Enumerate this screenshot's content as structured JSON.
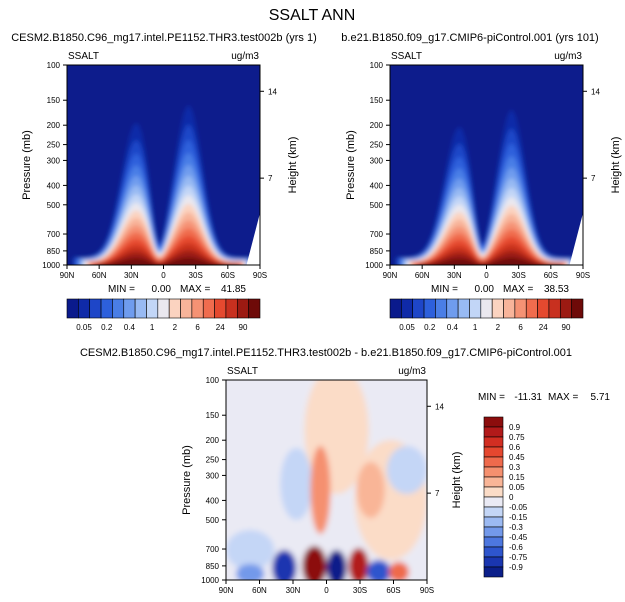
{
  "figure_title": "SSALT ANN",
  "chart_data": [
    {
      "type": "heatmap",
      "title": "CESM2.B1850.C96_mg17.intel.PE1152.THR3.test002b (yrs 1)",
      "left_label": "SSALT",
      "units": "ug/m3",
      "xlabel": "",
      "ylabel": "Pressure (mb)",
      "y2label": "Height (km)",
      "x_ticks": [
        "90N",
        "60N",
        "30N",
        "0",
        "30S",
        "60S",
        "90S"
      ],
      "y_ticks": [
        100,
        150,
        200,
        250,
        300,
        400,
        500,
        700,
        850,
        1000
      ],
      "y_scale": "log",
      "ylim": [
        1000,
        100
      ],
      "y2_ticks": [
        14,
        7
      ],
      "stats": {
        "min_label": "MIN =",
        "min": "0.00",
        "max_label": "MAX =",
        "max": "41.85"
      },
      "color_levels": [
        "0.05",
        "0.2",
        "0.4",
        "1",
        "2",
        "6",
        "24",
        "90"
      ],
      "palette": [
        "#0a1a8c",
        "#0f2aa8",
        "#1e46c8",
        "#2d60dc",
        "#4a7ee6",
        "#6f9cee",
        "#98baf3",
        "#c2d6f7",
        "#eae8ef",
        "#fbd3c0",
        "#f8b49a",
        "#f59274",
        "#f06c4e",
        "#e5492f",
        "#c8301f",
        "#9c1a12",
        "#6e0a08"
      ]
    },
    {
      "type": "heatmap",
      "title": "b.e21.B1850.f09_g17.CMIP6-piControl.001 (yrs 101)",
      "left_label": "SSALT",
      "units": "ug/m3",
      "xlabel": "",
      "ylabel": "Pressure (mb)",
      "y2label": "Height (km)",
      "x_ticks": [
        "90N",
        "60N",
        "30N",
        "0",
        "30S",
        "60S",
        "90S"
      ],
      "y_ticks": [
        100,
        150,
        200,
        250,
        300,
        400,
        500,
        700,
        850,
        1000
      ],
      "y_scale": "log",
      "ylim": [
        1000,
        100
      ],
      "y2_ticks": [
        14,
        7
      ],
      "stats": {
        "min_label": "MIN =",
        "min": "0.00",
        "max_label": "MAX =",
        "max": "38.53"
      },
      "color_levels": [
        "0.05",
        "0.2",
        "0.4",
        "1",
        "2",
        "6",
        "24",
        "90"
      ],
      "palette": [
        "#0a1a8c",
        "#0f2aa8",
        "#1e46c8",
        "#2d60dc",
        "#4a7ee6",
        "#6f9cee",
        "#98baf3",
        "#c2d6f7",
        "#eae8ef",
        "#fbd3c0",
        "#f8b49a",
        "#f59274",
        "#f06c4e",
        "#e5492f",
        "#c8301f",
        "#9c1a12",
        "#6e0a08"
      ]
    },
    {
      "type": "heatmap",
      "title": "CESM2.B1850.C96_mg17.intel.PE1152.THR3.test002b - b.e21.B1850.f09_g17.CMIP6-piControl.001",
      "left_label": "SSALT",
      "units": "ug/m3",
      "xlabel": "",
      "ylabel": "Pressure (mb)",
      "y2label": "Height (km)",
      "x_ticks": [
        "90N",
        "60N",
        "30N",
        "0",
        "30S",
        "60S",
        "90S"
      ],
      "y_ticks": [
        100,
        150,
        200,
        250,
        300,
        400,
        500,
        700,
        850,
        1000
      ],
      "y_scale": "log",
      "ylim": [
        1000,
        100
      ],
      "y2_ticks": [
        14,
        7
      ],
      "stats": {
        "min_label": "MIN =",
        "min": "-11.31",
        "max_label": "MAX =",
        "max": "5.71"
      },
      "color_levels": [
        "0.9",
        "0.75",
        "0.6",
        "0.45",
        "0.3",
        "0.15",
        "0.05",
        "0",
        "-0.05",
        "-0.15",
        "-0.3",
        "-0.45",
        "-0.6",
        "-0.75",
        "-0.9"
      ],
      "palette": [
        "#8c0d0d",
        "#b21a1a",
        "#d22e22",
        "#e5472f",
        "#ef6a4c",
        "#f5906f",
        "#f9b597",
        "#fbdcc7",
        "#eaeaf4",
        "#c4d6f6",
        "#9cbaf2",
        "#7399ea",
        "#4d77df",
        "#2e55cd",
        "#1a36b0",
        "#0b1f8a"
      ]
    }
  ]
}
